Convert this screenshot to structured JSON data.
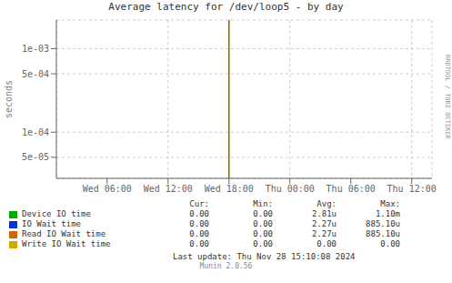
{
  "chart_data": {
    "type": "line",
    "title": "Average latency for /dev/loop5 - by day",
    "y_label": "seconds",
    "log": "y",
    "grid": true,
    "xlim": [
      3600,
      136800
    ],
    "xticks": [
      {
        "value": 21600,
        "label": "Wed 06:00"
      },
      {
        "value": 43200,
        "label": "Wed 12:00"
      },
      {
        "value": 64800,
        "label": "Wed 18:00"
      },
      {
        "value": 86400,
        "label": "Thu 00:00"
      },
      {
        "value": 108000,
        "label": "Thu 06:00"
      },
      {
        "value": 129600,
        "label": "Thu 12:00"
      }
    ],
    "ylim": [
      2.8e-05,
      0.0022
    ],
    "yticks": [
      {
        "value": 5e-05,
        "label": "5e-05"
      },
      {
        "value": 0.0001,
        "label": "1e-04"
      },
      {
        "value": 0.0005,
        "label": "5e-04"
      },
      {
        "value": 0.001,
        "label": "1e-03"
      }
    ],
    "series": [
      {
        "name": "Device IO time",
        "color": "#00aa00",
        "spike_x": 64770,
        "stats": [
          "0.00",
          "0.00",
          "2.81u",
          "1.10m"
        ]
      },
      {
        "name": "IO Wait time",
        "color": "#0033cc",
        "stats": [
          "0.00",
          "0.00",
          "2.27u",
          "885.10u"
        ]
      },
      {
        "name": "Read IO Wait time",
        "color": "#cc6600",
        "spike_x": 64800,
        "stats": [
          "0.00",
          "0.00",
          "2.27u",
          "885.10u"
        ]
      },
      {
        "name": "Write IO Wait time",
        "color": "#ccaa00",
        "stats": [
          "0.00",
          "0.00",
          "0.00",
          "0.00"
        ]
      }
    ],
    "stat_headers": [
      "Cur:",
      "Min:",
      "Avg:",
      "Max:"
    ],
    "last_update": "Last update: Thu Nov 28 15:10:08 2024",
    "footer": "Munin 2.0.56",
    "side_text": "RRDTOOL / TOBI OETIKER"
  }
}
